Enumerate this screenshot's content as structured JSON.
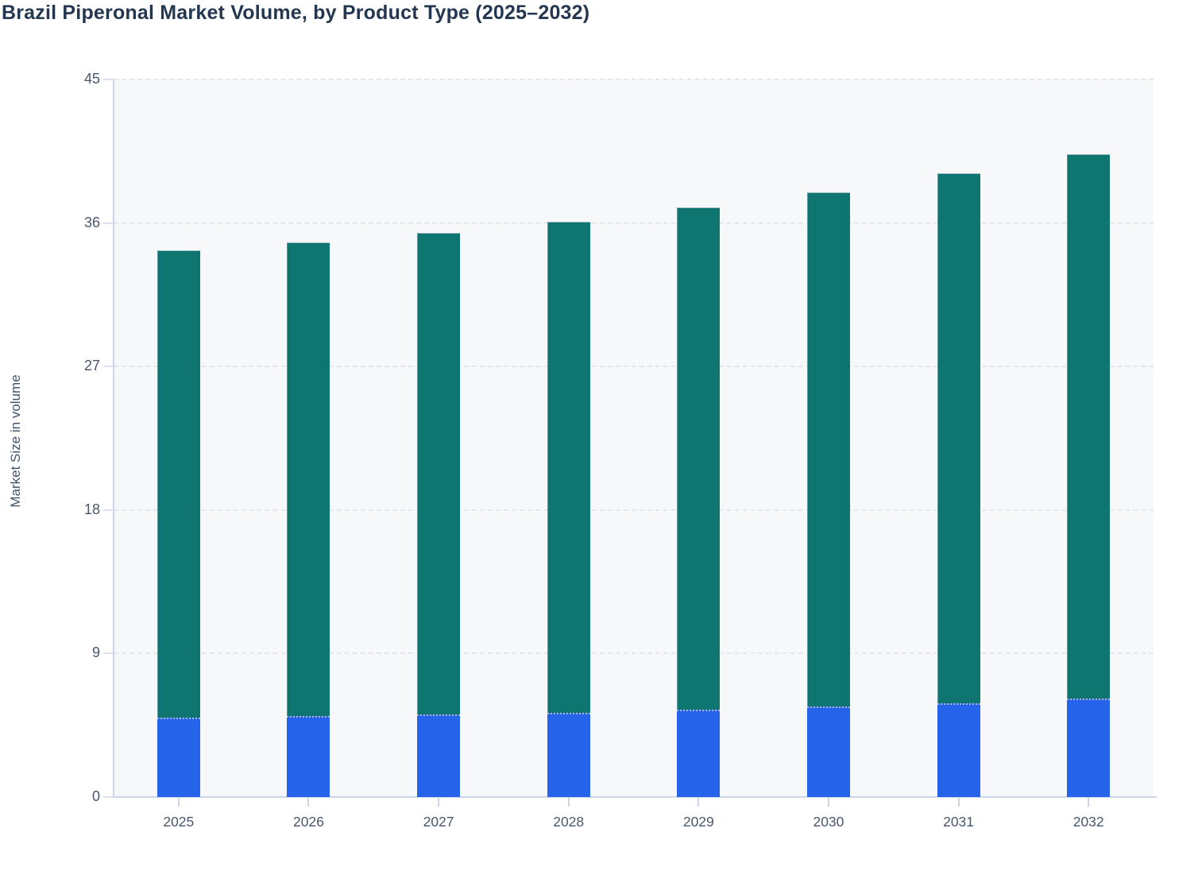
{
  "title": "Brazil Piperonal Market Volume, by Product Type (2025–2032)",
  "chart_data": {
    "type": "bar",
    "stacked": true,
    "title": "Brazil Piperonal Market Volume, by Product Type (2025–2032)",
    "xlabel": "",
    "ylabel": "Market Size in volume",
    "categories": [
      "2025",
      "2026",
      "2027",
      "2028",
      "2029",
      "2030",
      "2031",
      "2032"
    ],
    "series": [
      {
        "name": "blue-series",
        "color": "#2563eb",
        "values": [
          5.0,
          5.1,
          5.2,
          5.3,
          5.5,
          5.7,
          5.9,
          6.2
        ]
      },
      {
        "name": "teal-series",
        "color": "#0e7570",
        "values": [
          29.3,
          29.7,
          30.2,
          30.8,
          31.5,
          32.2,
          33.2,
          34.1
        ]
      }
    ],
    "totals": [
      34.3,
      34.8,
      35.4,
      36.1,
      37.0,
      37.9,
      39.1,
      40.3
    ],
    "ylim": [
      0,
      45
    ],
    "yticks": [
      0,
      9,
      18,
      27,
      36,
      45
    ],
    "grid": true,
    "legend_position": "none"
  },
  "colors": {
    "title_text": "#233750",
    "axis_text": "#4a576b",
    "ylabel_text": "#44536b",
    "axis_line": "#ccd4e8",
    "gridline": "#e4e7ee",
    "plot_background": "#f7f8fa",
    "page_background": "#ffffff",
    "segment_divider": "#aab8d0"
  }
}
